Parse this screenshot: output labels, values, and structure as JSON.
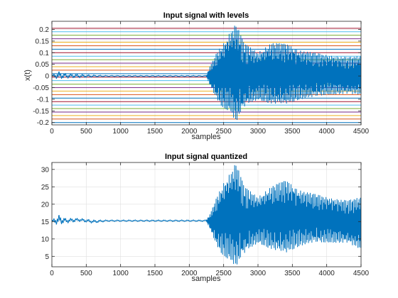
{
  "chart_data": [
    {
      "type": "line",
      "title": "Input signal with levels",
      "xlabel": "samples",
      "ylabel": "x(t)",
      "xlim": [
        0,
        4500
      ],
      "ylim": [
        -0.21,
        0.235
      ],
      "xticks": [
        0,
        500,
        1000,
        1500,
        2000,
        2500,
        3000,
        3500,
        4000,
        4500
      ],
      "xtick_labels": [
        "0",
        "500",
        "1000",
        "1500",
        "2000",
        "2500",
        "3000",
        "3500",
        "4000",
        "4500"
      ],
      "yticks": [
        -0.2,
        -0.15,
        -0.1,
        -0.05,
        0,
        0.05,
        0.1,
        0.15,
        0.2
      ],
      "ytick_labels": [
        "-0.2",
        "-0.15",
        "-0.1",
        "-0.05",
        "0",
        "0.05",
        "0.1",
        "0.15",
        "0.2"
      ],
      "grid": true,
      "level_lines": [
        -0.2,
        -0.185,
        -0.17,
        -0.155,
        -0.14,
        -0.125,
        -0.11,
        -0.095,
        -0.08,
        -0.065,
        -0.05,
        -0.035,
        -0.02,
        -0.005,
        0.01,
        0.025,
        0.04,
        0.055,
        0.07,
        0.085,
        0.1,
        0.115,
        0.13,
        0.145,
        0.16,
        0.175,
        0.19,
        0.205
      ],
      "level_colors": [
        "#0072bd",
        "#d95319",
        "#edb120",
        "#7e2f8e",
        "#77ac30",
        "#4dbeee",
        "#a2142f"
      ],
      "signal_color": "#0072bd",
      "signal_envelope": {
        "x": [
          0,
          100,
          200,
          400,
          600,
          800,
          1000,
          1500,
          2000,
          2250,
          2300,
          2400,
          2500,
          2600,
          2680,
          2800,
          3000,
          3200,
          3400,
          3600,
          3800,
          4000,
          4300,
          4500
        ],
        "upper": [
          0.005,
          0.02,
          0.012,
          0.008,
          0.005,
          0.003,
          0.003,
          0.003,
          0.003,
          0.003,
          0.04,
          0.1,
          0.14,
          0.19,
          0.225,
          0.14,
          0.1,
          0.14,
          0.14,
          0.11,
          0.1,
          0.09,
          0.08,
          0.085
        ],
        "lower": [
          -0.005,
          -0.015,
          -0.01,
          -0.008,
          -0.005,
          -0.003,
          -0.003,
          -0.003,
          -0.003,
          -0.003,
          -0.04,
          -0.1,
          -0.14,
          -0.15,
          -0.2,
          -0.13,
          -0.1,
          -0.12,
          -0.12,
          -0.1,
          -0.09,
          -0.08,
          -0.075,
          -0.08
        ]
      }
    },
    {
      "type": "line",
      "title": "Input signal quantized",
      "xlabel": "samples",
      "ylabel": "",
      "xlim": [
        0,
        4500
      ],
      "ylim": [
        2,
        32
      ],
      "xticks": [
        0,
        500,
        1000,
        1500,
        2000,
        2500,
        3000,
        3500,
        4000,
        4500
      ],
      "xtick_labels": [
        "0",
        "500",
        "1000",
        "1500",
        "2000",
        "2500",
        "3000",
        "3500",
        "4000",
        "4500"
      ],
      "yticks": [
        5,
        10,
        15,
        20,
        25,
        30
      ],
      "ytick_labels": [
        "5",
        "10",
        "15",
        "20",
        "25",
        "30"
      ],
      "grid": true,
      "signal_color": "#0072bd",
      "signal_envelope": {
        "x": [
          0,
          100,
          200,
          400,
          600,
          800,
          1000,
          1500,
          2000,
          2250,
          2300,
          2400,
          2500,
          2600,
          2680,
          2800,
          3000,
          3200,
          3400,
          3600,
          3800,
          4000,
          4300,
          4500
        ],
        "upper": [
          15.5,
          17,
          16,
          16,
          15.5,
          15.5,
          15.5,
          15.5,
          15.5,
          15.5,
          17,
          22,
          26,
          29,
          32,
          25,
          22,
          25,
          27,
          24,
          23,
          22,
          21,
          22
        ],
        "lower": [
          14.5,
          14,
          14.5,
          15,
          14.5,
          15,
          15,
          15,
          15,
          15,
          13,
          8,
          5,
          4,
          2,
          6,
          9,
          7,
          6,
          8,
          9,
          9,
          9,
          7
        ]
      }
    }
  ]
}
